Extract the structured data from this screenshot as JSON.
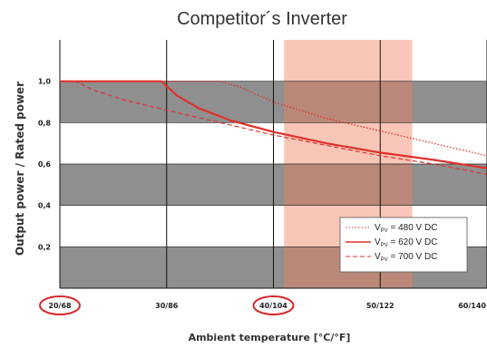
{
  "chart_data": {
    "type": "line",
    "title": "Competitor´s Inverter",
    "xlabel": "Ambient temperature [°C/°F]",
    "ylabel": "Output power / Rated power",
    "x_ticks": [
      {
        "value": 20,
        "label": "20/68",
        "circled": true
      },
      {
        "value": 30,
        "label": "30/86",
        "circled": false
      },
      {
        "value": 40,
        "label": "40/104",
        "circled": true
      },
      {
        "value": 50,
        "label": "50/122",
        "circled": false
      },
      {
        "value": 60,
        "label": "60/140",
        "circled": false
      }
    ],
    "y_ticks": [
      {
        "value": 0.2,
        "label": "0,2"
      },
      {
        "value": 0.4,
        "label": "0,4"
      },
      {
        "value": 0.6,
        "label": "0,6"
      },
      {
        "value": 0.8,
        "label": "0,8"
      },
      {
        "value": 1.0,
        "label": "1,0"
      }
    ],
    "xlim": [
      20,
      60
    ],
    "ylim": [
      0,
      1.2
    ],
    "highlight_band": [
      41,
      53
    ],
    "legend_placement": "bottom-right",
    "series": [
      {
        "name": "480 V DC",
        "legend_prefix": "V",
        "legend_sub": "PV",
        "legend_suffix": " = 480 V DC",
        "style": "dotted",
        "color": "#e0302a",
        "x": [
          20,
          35,
          37,
          40,
          45,
          50,
          55,
          60
        ],
        "y": [
          1.0,
          1.0,
          0.97,
          0.9,
          0.82,
          0.76,
          0.7,
          0.64
        ]
      },
      {
        "name": "620 V DC",
        "legend_prefix": "V",
        "legend_sub": "PV",
        "legend_suffix": " = 620 V DC",
        "style": "solid",
        "color": "#e0302a",
        "x": [
          20,
          29.5,
          31,
          33,
          36,
          40,
          45,
          50,
          55,
          60
        ],
        "y": [
          1.0,
          1.0,
          0.93,
          0.87,
          0.81,
          0.755,
          0.7,
          0.655,
          0.62,
          0.58
        ]
      },
      {
        "name": "700 V DC",
        "legend_prefix": "V",
        "legend_sub": "PV",
        "legend_suffix": " = 700 V DC",
        "style": "dashed",
        "color": "#e0302a",
        "x": [
          20,
          21.5,
          23,
          26,
          30,
          35,
          40,
          45,
          50,
          55,
          60
        ],
        "y": [
          1.0,
          1.0,
          0.96,
          0.91,
          0.86,
          0.8,
          0.74,
          0.69,
          0.64,
          0.6,
          0.55
        ]
      }
    ]
  }
}
